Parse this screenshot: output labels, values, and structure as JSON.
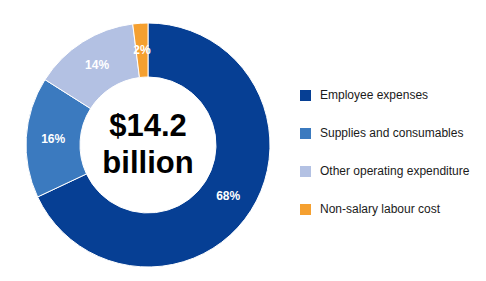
{
  "chart_data": {
    "type": "pie",
    "title": "$14.2 billion",
    "categories": [
      "Employee expenses",
      "Supplies and consumables",
      "Other operating expenditure",
      "Non-salary labour cost"
    ],
    "values": [
      68,
      16,
      14,
      2
    ],
    "value_labels": [
      "68%",
      "16%",
      "14%",
      "2%"
    ],
    "colors": [
      "#063f94",
      "#3b7abf",
      "#b3c1e3",
      "#f5a030"
    ],
    "data_labels": true,
    "legend": "right"
  }
}
